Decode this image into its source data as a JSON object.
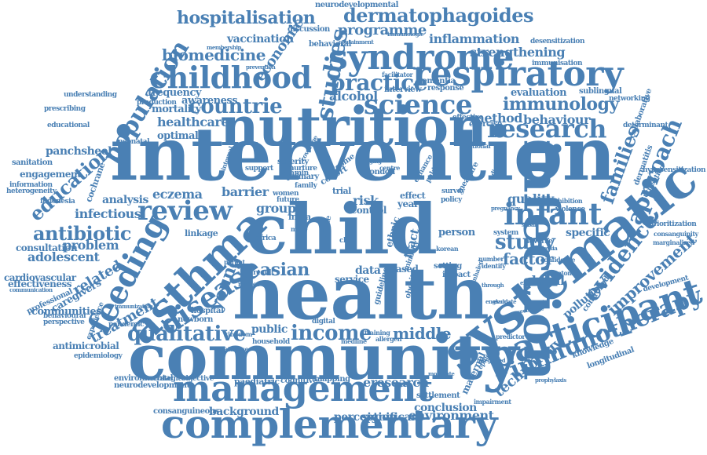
{
  "colors": {
    "word": "#4a80b4",
    "background": "#ffffff"
  },
  "words": [
    {
      "id": "intervention",
      "text": "intervention"
    },
    {
      "id": "child",
      "text": "child"
    },
    {
      "id": "health",
      "text": "health"
    },
    {
      "id": "community",
      "text": "community"
    },
    {
      "id": "nutrition",
      "text": "nutrition"
    },
    {
      "id": "systematic",
      "text": "systematic"
    },
    {
      "id": "management",
      "text": "management"
    },
    {
      "id": "complementary",
      "text": "complementary"
    },
    {
      "id": "infection",
      "text": "infection"
    },
    {
      "id": "participant",
      "text": "participant"
    },
    {
      "id": "asthma",
      "text": "asthma"
    },
    {
      "id": "childhood",
      "text": "childhood"
    },
    {
      "id": "syndrome",
      "text": "syndrome"
    },
    {
      "id": "respiratory",
      "text": "respiratory"
    },
    {
      "id": "feeding",
      "text": "feeding"
    },
    {
      "id": "disease",
      "text": "disease"
    },
    {
      "id": "science",
      "text": "science"
    },
    {
      "id": "review",
      "text": "review"
    },
    {
      "id": "population",
      "text": "population"
    },
    {
      "id": "research",
      "text": "research"
    },
    {
      "id": "immunotherapy",
      "text": "immunotherapy"
    },
    {
      "id": "approach",
      "text": "approach"
    },
    {
      "id": "evidence",
      "text": "evidence"
    },
    {
      "id": "qualitative",
      "text": "qualitative"
    },
    {
      "id": "income",
      "text": "income"
    },
    {
      "id": "antibiotic",
      "text": "antibiotic"
    },
    {
      "id": "practice",
      "text": "practice"
    },
    {
      "id": "countrie",
      "text": "countrie"
    },
    {
      "id": "study",
      "text": "study"
    },
    {
      "id": "infant",
      "text": "infant"
    },
    {
      "id": "studies",
      "text": "studies"
    },
    {
      "id": "education",
      "text": "education"
    },
    {
      "id": "dermatophagoides",
      "text": "dermatophagoides"
    },
    {
      "id": "hospitalisation",
      "text": "hospitalisation"
    },
    {
      "id": "biomedicine",
      "text": "biomedicine"
    },
    {
      "id": "immunology",
      "text": "immunology"
    },
    {
      "id": "asian",
      "text": "asian"
    },
    {
      "id": "families",
      "text": "families"
    },
    {
      "id": "factor",
      "text": "factor"
    },
    {
      "id": "young",
      "text": "young"
    },
    {
      "id": "improvement",
      "text": "improvement"
    },
    {
      "id": "technology",
      "text": "technology"
    },
    {
      "id": "middle",
      "text": "middle"
    },
    {
      "id": "eresearch",
      "text": "eresearch"
    },
    {
      "id": "environment",
      "text": "environment"
    },
    {
      "id": "background",
      "text": "background"
    },
    {
      "id": "programme",
      "text": "programme"
    },
    {
      "id": "economic",
      "text": "economic"
    },
    {
      "id": "healthcare",
      "text": "healthcare"
    },
    {
      "id": "alcohol",
      "text": "alcohol"
    },
    {
      "id": "inflammation",
      "text": "inflammation"
    },
    {
      "id": "strengthening",
      "text": "strengthening"
    },
    {
      "id": "method",
      "text": "method"
    },
    {
      "id": "behaviour",
      "text": "behaviour"
    },
    {
      "id": "quality",
      "text": "quality"
    },
    {
      "id": "global",
      "text": "global"
    },
    {
      "id": "treatment",
      "text": "treatment"
    },
    {
      "id": "related",
      "text": "related"
    },
    {
      "id": "adolescent",
      "text": "adolescent"
    },
    {
      "id": "problem",
      "text": "problem"
    },
    {
      "id": "eczema",
      "text": "eczema"
    },
    {
      "id": "barrier",
      "text": "barrier"
    },
    {
      "id": "analysis",
      "text": "analysis"
    },
    {
      "id": "infectious",
      "text": "infectious"
    },
    {
      "id": "group",
      "text": "group"
    },
    {
      "id": "risk",
      "text": "risk"
    },
    {
      "id": "specific",
      "text": "specific"
    },
    {
      "id": "pollution",
      "text": "pollution"
    },
    {
      "id": "vaccination",
      "text": "vaccination"
    },
    {
      "id": "conclusion",
      "text": "conclusion"
    },
    {
      "id": "perception",
      "text": "perception"
    },
    {
      "id": "significant",
      "text": "significant"
    },
    {
      "id": "maternal",
      "text": "maternal"
    },
    {
      "id": "public",
      "text": "public"
    },
    {
      "id": "evaluation",
      "text": "evaluation"
    },
    {
      "id": "awareness",
      "text": "awareness"
    },
    {
      "id": "frequency",
      "text": "frequency"
    },
    {
      "id": "mortality",
      "text": "mortality"
    },
    {
      "id": "optimal",
      "text": "optimal"
    },
    {
      "id": "panchsheel",
      "text": "panchsheel"
    },
    {
      "id": "engagement",
      "text": "engagement"
    },
    {
      "id": "consultation",
      "text": "consultation"
    },
    {
      "id": "cardiovascular",
      "text": "cardiovascular"
    },
    {
      "id": "effectiveness",
      "text": "effectiveness"
    },
    {
      "id": "communities",
      "text": "communities"
    },
    {
      "id": "antimicrobial",
      "text": "antimicrobial"
    },
    {
      "id": "environmental",
      "text": "environmental"
    },
    {
      "id": "neurodevelopment",
      "text": "neurodevelopment"
    },
    {
      "id": "consanguineous",
      "text": "consanguineous"
    },
    {
      "id": "paediatric",
      "text": "paediatric"
    },
    {
      "id": "strategies",
      "text": "strategies"
    },
    {
      "id": "objective",
      "text": "objective"
    },
    {
      "id": "cognitive",
      "text": "cognitive"
    },
    {
      "id": "mapping",
      "text": "mapping"
    },
    {
      "id": "settlement",
      "text": "settlement"
    },
    {
      "id": "knowledge",
      "text": "knowledge"
    },
    {
      "id": "longitudinal",
      "text": "longitudinal"
    },
    {
      "id": "neurodevelopmental",
      "text": "neurodevelopmental"
    },
    {
      "id": "discussion",
      "text": "discussion"
    },
    {
      "id": "behavioral",
      "text": "behavioral"
    },
    {
      "id": "dementia",
      "text": "dementia"
    },
    {
      "id": "response",
      "text": "response"
    },
    {
      "id": "interview",
      "text": "interview"
    },
    {
      "id": "effective",
      "text": "effective"
    },
    {
      "id": "exercise",
      "text": "exercise"
    },
    {
      "id": "sublingual",
      "text": "sublingual"
    },
    {
      "id": "networking",
      "text": "networking"
    },
    {
      "id": "desensitization",
      "text": "desensitization"
    },
    {
      "id": "immunisation",
      "text": "immunisation"
    },
    {
      "id": "determinant",
      "text": "determinant"
    },
    {
      "id": "hyposensitization",
      "text": "hyposensitization"
    },
    {
      "id": "utilisation",
      "text": "utilisation"
    },
    {
      "id": "dermatitis",
      "text": "dermatitis"
    },
    {
      "id": "collaborative",
      "text": "collaborative"
    },
    {
      "id": "prioritization",
      "text": "prioritization"
    },
    {
      "id": "consanguinity",
      "text": "consanguinity"
    },
    {
      "id": "marginalized",
      "text": "marginalized"
    },
    {
      "id": "development",
      "text": "development"
    },
    {
      "id": "controlled",
      "text": "controlled"
    },
    {
      "id": "violence",
      "text": "violence"
    },
    {
      "id": "exhibition",
      "text": "exhibition"
    },
    {
      "id": "adverse",
      "text": "adverse"
    },
    {
      "id": "system",
      "text": "system"
    },
    {
      "id": "confidence",
      "text": "confidence"
    },
    {
      "id": "symptom",
      "text": "symptom"
    },
    {
      "id": "england",
      "text": "england"
    },
    {
      "id": "evaluate",
      "text": "evaluate"
    },
    {
      "id": "predictor",
      "text": "predictor"
    },
    {
      "id": "impairment",
      "text": "impairment"
    },
    {
      "id": "epidemic",
      "text": "epidemic"
    },
    {
      "id": "integrated",
      "text": "integrated"
    },
    {
      "id": "moderate",
      "text": "moderate"
    },
    {
      "id": "prophylaxis",
      "text": "prophylaxis"
    },
    {
      "id": "secondary",
      "text": "secondary"
    },
    {
      "id": "understanding",
      "text": "understanding"
    },
    {
      "id": "prescribing",
      "text": "prescribing"
    },
    {
      "id": "educational",
      "text": "educational"
    },
    {
      "id": "neonatal",
      "text": "neonatal"
    },
    {
      "id": "production",
      "text": "production"
    },
    {
      "id": "vitamin",
      "text": "vitamin"
    },
    {
      "id": "nurture",
      "text": "nurture"
    },
    {
      "id": "primary",
      "text": "primary"
    },
    {
      "id": "family",
      "text": "family"
    },
    {
      "id": "london",
      "text": "london"
    },
    {
      "id": "trial",
      "text": "trial"
    },
    {
      "id": "control",
      "text": "control"
    },
    {
      "id": "year",
      "text": "year"
    },
    {
      "id": "effect",
      "text": "effect"
    },
    {
      "id": "survey",
      "text": "survey"
    },
    {
      "id": "policy",
      "text": "policy"
    },
    {
      "id": "person",
      "text": "person"
    },
    {
      "id": "tract",
      "text": "tract"
    },
    {
      "id": "ethnic",
      "text": "ethnic"
    },
    {
      "id": "service",
      "text": "service"
    },
    {
      "id": "data",
      "text": "data"
    },
    {
      "id": "based",
      "text": "based"
    },
    {
      "id": "setting",
      "text": "setting"
    },
    {
      "id": "impact",
      "text": "impact"
    },
    {
      "id": "identify",
      "text": "identify"
    },
    {
      "id": "guideline",
      "text": "guideline"
    },
    {
      "id": "obesity",
      "text": "obesity"
    },
    {
      "id": "sanitation",
      "text": "sanitation"
    },
    {
      "id": "information",
      "text": "information"
    },
    {
      "id": "heterogeneity",
      "text": "heterogeneity"
    },
    {
      "id": "indonesia",
      "text": "indonesia"
    },
    {
      "id": "cochrane",
      "text": "cochrane"
    },
    {
      "id": "professional",
      "text": "professional"
    },
    {
      "id": "caregivers",
      "text": "caregivers"
    },
    {
      "id": "behavioural",
      "text": "behavioural"
    },
    {
      "id": "experience",
      "text": "experience"
    },
    {
      "id": "perspective",
      "text": "perspective"
    },
    {
      "id": "pandemic",
      "text": "pandemic"
    },
    {
      "id": "epidemiology",
      "text": "epidemiology"
    },
    {
      "id": "hospital",
      "text": "hospital"
    },
    {
      "id": "newborn",
      "text": "newborn"
    },
    {
      "id": "linkage",
      "text": "linkage"
    },
    {
      "id": "parent",
      "text": "parent"
    },
    {
      "id": "reduce",
      "text": "reduce"
    },
    {
      "id": "result",
      "text": "result"
    },
    {
      "id": "kingdom",
      "text": "kingdom"
    },
    {
      "id": "household",
      "text": "household"
    },
    {
      "id": "database",
      "text": "database"
    },
    {
      "id": "medline",
      "text": "medline"
    },
    {
      "id": "india",
      "text": "india"
    },
    {
      "id": "africa",
      "text": "africa"
    },
    {
      "id": "future",
      "text": "future"
    },
    {
      "id": "women",
      "text": "women"
    },
    {
      "id": "cohort",
      "text": "cohort"
    },
    {
      "id": "severity",
      "text": "severity"
    },
    {
      "id": "support",
      "text": "support"
    },
    {
      "id": "crime",
      "text": "crime"
    },
    {
      "id": "digital",
      "text": "digital"
    },
    {
      "id": "more",
      "text": "more"
    },
    {
      "id": "outcome",
      "text": "outcome"
    },
    {
      "id": "chip",
      "text": "chip"
    },
    {
      "id": "korean",
      "text": "korean"
    },
    {
      "id": "number",
      "text": "number"
    },
    {
      "id": "enhance",
      "text": "enhance"
    },
    {
      "id": "pakistan",
      "text": "pakistan"
    },
    {
      "id": "measure",
      "text": "measure"
    },
    {
      "id": "national",
      "text": "national"
    },
    {
      "id": "containment",
      "text": "containment"
    },
    {
      "id": "immunologic",
      "text": "immunologic"
    },
    {
      "id": "membership",
      "text": "membership"
    },
    {
      "id": "prevention",
      "text": "prevention"
    },
    {
      "id": "facilitator",
      "text": "facilitator"
    },
    {
      "id": "immunization",
      "text": "immunization"
    },
    {
      "id": "communication",
      "text": "communication"
    },
    {
      "id": "training",
      "text": "training"
    },
    {
      "id": "allergen",
      "text": "allergen"
    },
    {
      "id": "pregnancy",
      "text": "pregnancy"
    },
    {
      "id": "inhaled",
      "text": "inhaled"
    },
    {
      "id": "minority",
      "text": "minority"
    },
    {
      "id": "exploring",
      "text": "exploring"
    },
    {
      "id": "centre",
      "text": "centre"
    },
    {
      "id": "aging",
      "text": "aging"
    },
    {
      "id": "coverage",
      "text": "coverage"
    },
    {
      "id": "internal",
      "text": "internal"
    },
    {
      "id": "discrete",
      "text": "discrete"
    },
    {
      "id": "mental",
      "text": "mental"
    },
    {
      "id": "malaysia",
      "text": "malaysia"
    },
    {
      "id": "sabah",
      "text": "sabah"
    },
    {
      "id": "through",
      "text": "through"
    }
  ]
}
